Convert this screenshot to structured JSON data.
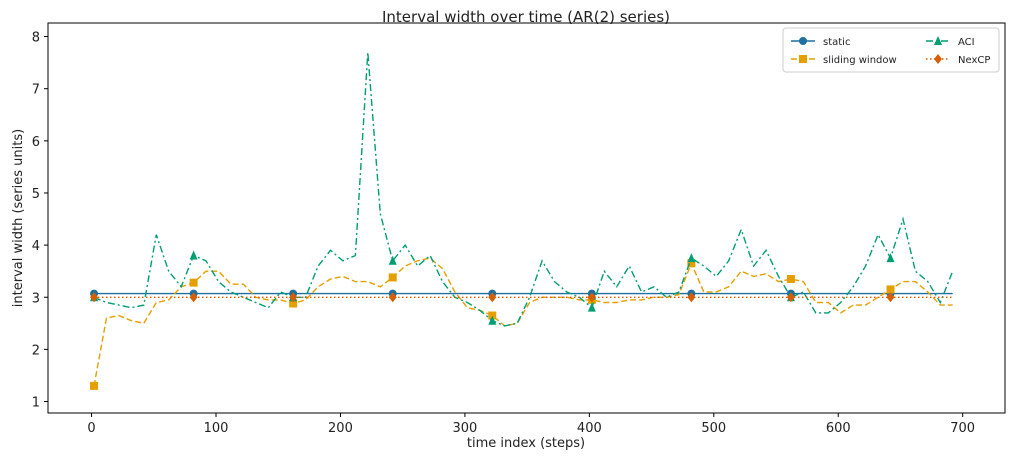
{
  "chart_data": {
    "type": "line",
    "title": "Interval width over time (AR(2) series)",
    "x_label": "time index (steps)",
    "y_label": "interval width (series units)",
    "x": [
      2,
      12,
      22,
      32,
      42,
      52,
      62,
      72,
      82,
      92,
      102,
      112,
      122,
      132,
      142,
      152,
      162,
      172,
      182,
      192,
      202,
      212,
      222,
      232,
      242,
      252,
      262,
      272,
      282,
      292,
      302,
      312,
      322,
      332,
      342,
      352,
      362,
      372,
      382,
      392,
      402,
      412,
      422,
      432,
      442,
      452,
      462,
      472,
      482,
      492,
      502,
      512,
      522,
      532,
      542,
      552,
      562,
      572,
      582,
      592,
      602,
      612,
      622,
      632,
      642,
      652,
      662,
      672,
      682,
      692
    ],
    "series": [
      {
        "name": "static",
        "color": "#1f6f9f",
        "dash": "solid",
        "marker": "circle",
        "values": [
          3.07,
          3.07,
          3.07,
          3.07,
          3.07,
          3.07,
          3.07,
          3.07,
          3.07,
          3.07,
          3.07,
          3.07,
          3.07,
          3.07,
          3.07,
          3.07,
          3.07,
          3.07,
          3.07,
          3.07,
          3.07,
          3.07,
          3.07,
          3.07,
          3.07,
          3.07,
          3.07,
          3.07,
          3.07,
          3.07,
          3.07,
          3.07,
          3.07,
          3.07,
          3.07,
          3.07,
          3.07,
          3.07,
          3.07,
          3.07,
          3.07,
          3.07,
          3.07,
          3.07,
          3.07,
          3.07,
          3.07,
          3.07,
          3.07,
          3.07,
          3.07,
          3.07,
          3.07,
          3.07,
          3.07,
          3.07,
          3.07,
          3.07,
          3.07,
          3.07,
          3.07,
          3.07,
          3.07,
          3.07,
          3.07,
          3.07,
          3.07,
          3.07,
          3.07,
          3.07
        ]
      },
      {
        "name": "sliding window",
        "color": "#e69f00",
        "dash": "dashed",
        "marker": "square",
        "values": [
          1.3,
          2.6,
          2.65,
          2.55,
          2.5,
          2.9,
          2.95,
          3.2,
          3.28,
          3.5,
          3.5,
          3.25,
          3.25,
          3.0,
          2.95,
          2.95,
          2.88,
          2.95,
          3.2,
          3.35,
          3.4,
          3.3,
          3.3,
          3.2,
          3.38,
          3.6,
          3.7,
          3.75,
          3.55,
          3.1,
          2.8,
          2.75,
          2.65,
          2.45,
          2.5,
          2.9,
          3.0,
          3.0,
          3.0,
          2.95,
          2.95,
          2.9,
          2.9,
          2.95,
          2.95,
          3.0,
          3.0,
          3.05,
          3.65,
          3.1,
          3.1,
          3.2,
          3.5,
          3.4,
          3.45,
          3.3,
          3.35,
          3.3,
          2.9,
          2.9,
          2.7,
          2.85,
          2.85,
          3.0,
          3.15,
          3.3,
          3.3,
          3.1,
          2.85,
          2.85
        ]
      },
      {
        "name": "ACI",
        "color": "#009e73",
        "dash": "dashdot",
        "marker": "triangle",
        "values": [
          3.0,
          2.9,
          2.85,
          2.8,
          2.85,
          4.2,
          3.5,
          3.2,
          3.8,
          3.7,
          3.3,
          3.1,
          3.0,
          2.9,
          2.8,
          3.1,
          3.0,
          3.0,
          3.6,
          3.9,
          3.7,
          3.8,
          7.7,
          4.6,
          3.7,
          4.0,
          3.6,
          3.8,
          3.3,
          3.0,
          2.9,
          2.75,
          2.55,
          2.45,
          2.5,
          3.0,
          3.7,
          3.3,
          3.1,
          3.0,
          2.8,
          3.5,
          3.2,
          3.6,
          3.1,
          3.2,
          3.0,
          3.1,
          3.75,
          3.6,
          3.4,
          3.7,
          4.3,
          3.6,
          3.9,
          3.4,
          3.0,
          3.1,
          2.7,
          2.7,
          2.9,
          3.2,
          3.6,
          4.2,
          3.75,
          4.5,
          3.5,
          3.3,
          2.9,
          3.5
        ]
      },
      {
        "name": "NexCP",
        "color": "#d55e00",
        "dash": "dotted",
        "marker": "diamond",
        "values": [
          3.0,
          3.0,
          3.0,
          3.0,
          3.0,
          3.0,
          3.0,
          3.0,
          3.0,
          3.0,
          3.0,
          3.0,
          3.0,
          3.0,
          3.0,
          3.0,
          3.0,
          3.0,
          3.0,
          3.0,
          3.0,
          3.0,
          3.0,
          3.0,
          3.0,
          3.0,
          3.0,
          3.0,
          3.0,
          3.0,
          3.0,
          3.0,
          3.0,
          3.0,
          3.0,
          3.0,
          3.0,
          3.0,
          3.0,
          3.0,
          3.0,
          3.0,
          3.0,
          3.0,
          3.0,
          3.0,
          3.0,
          3.0,
          3.0,
          3.0,
          3.0,
          3.0,
          3.0,
          3.0,
          3.0,
          3.0,
          3.0,
          3.0,
          3.0,
          3.0,
          3.0,
          3.0,
          3.0,
          3.0,
          3.0,
          3.0,
          3.0,
          3.0,
          3.0,
          3.0
        ]
      }
    ],
    "xlim": [
      -35,
      734
    ],
    "ylim": [
      0.78,
      8.26
    ],
    "xticks": [
      0,
      100,
      200,
      300,
      400,
      500,
      600,
      700
    ],
    "yticks": [
      1,
      2,
      3,
      4,
      5,
      6,
      7,
      8
    ],
    "legend": "upper right"
  }
}
